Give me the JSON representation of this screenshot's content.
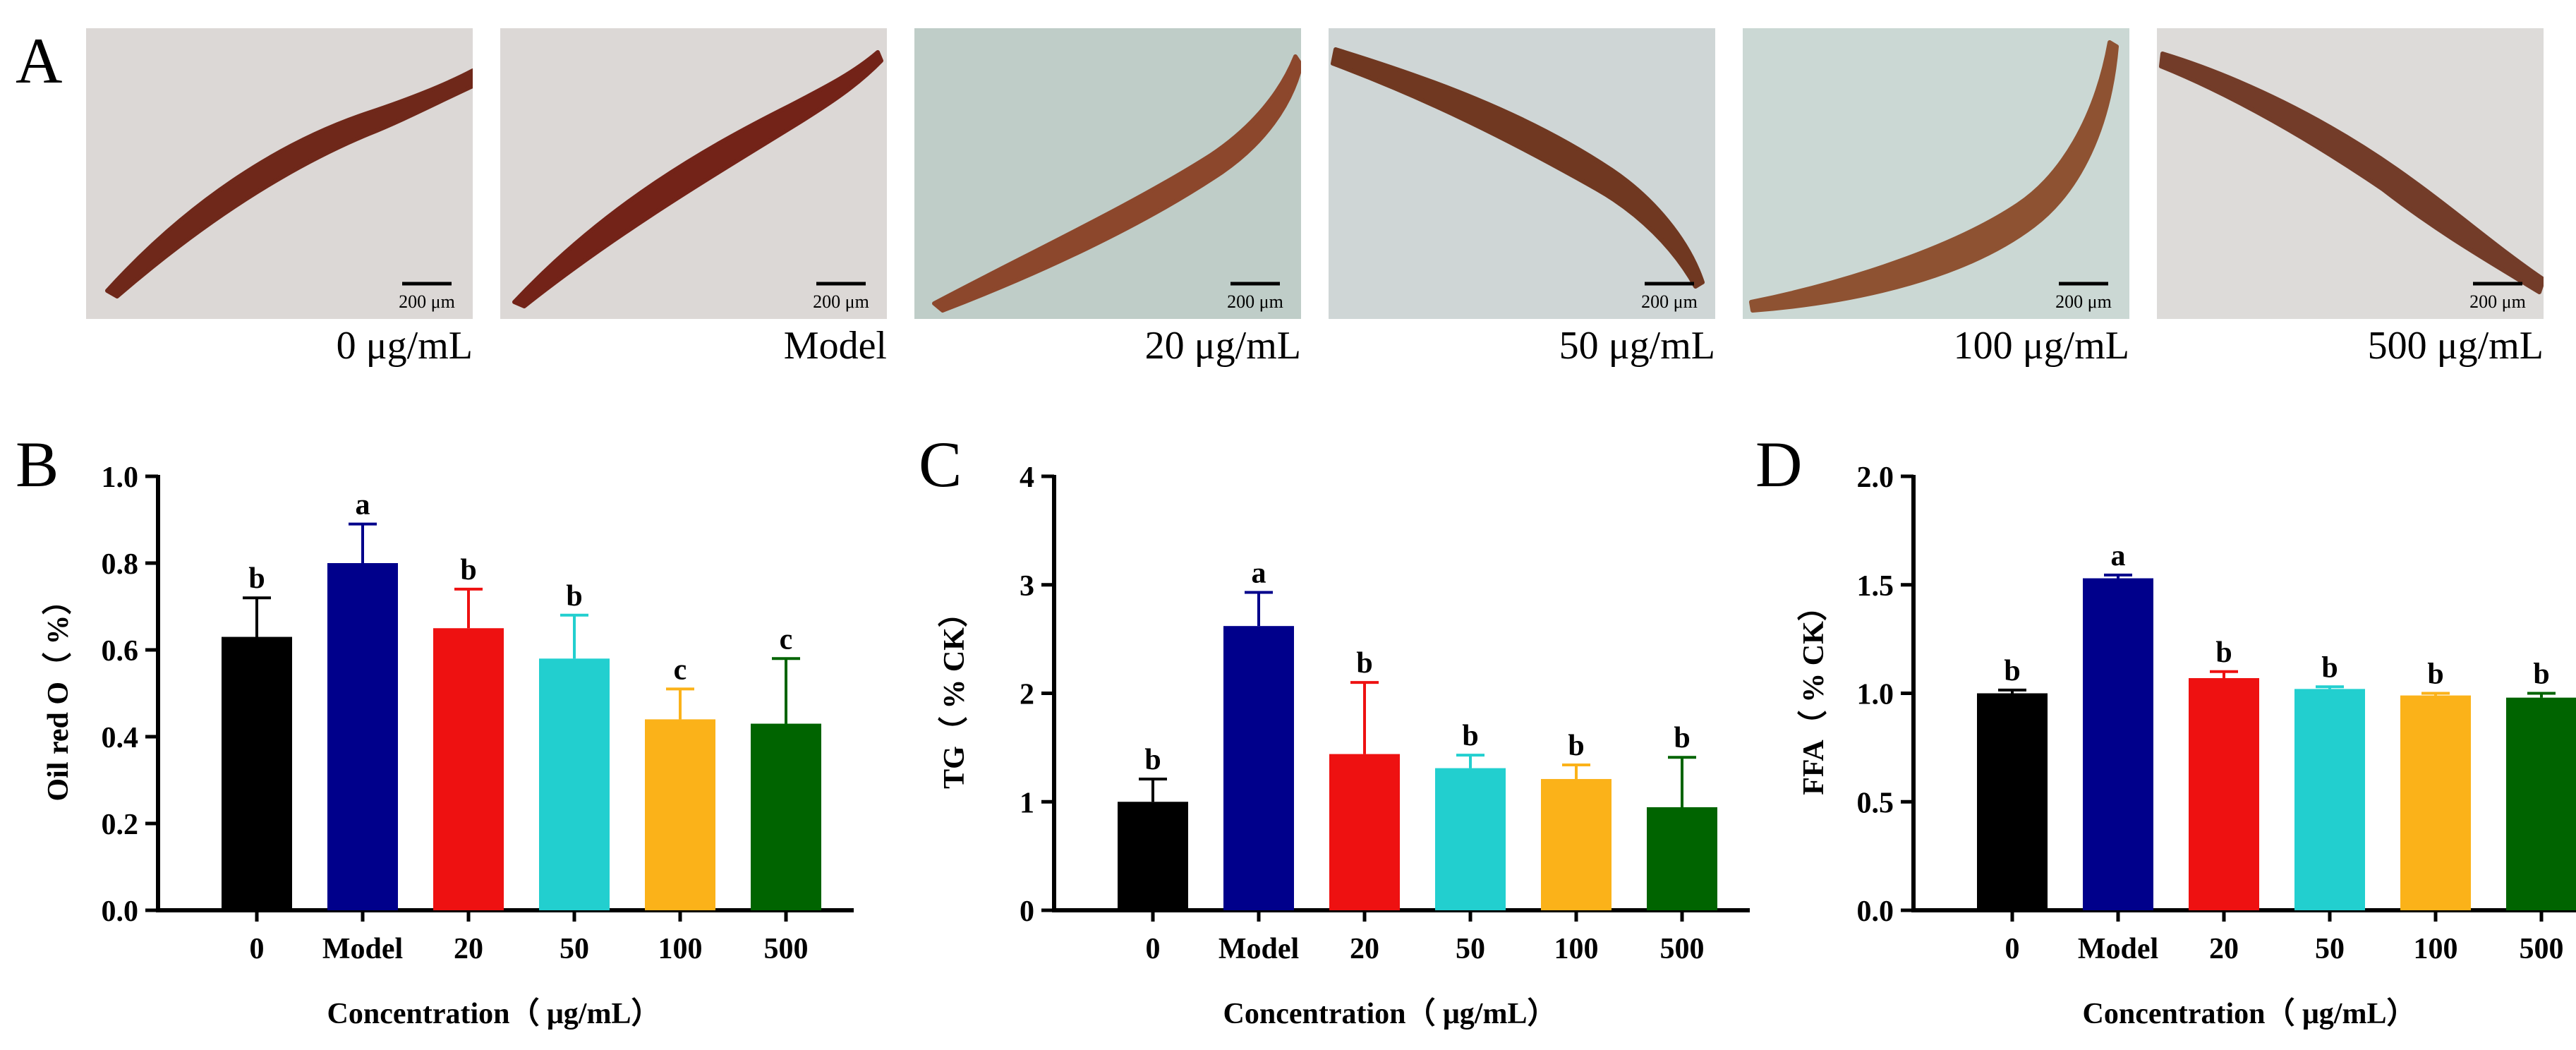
{
  "panels": {
    "A": "A",
    "B": "B",
    "C": "C",
    "D": "D"
  },
  "photos": [
    {
      "caption": "0 μg/mL",
      "scale_bar": "200 μm",
      "background": "#dcd8d6",
      "worm": "#6a1f10"
    },
    {
      "caption": "Model",
      "scale_bar": "200 μm",
      "background": "#dcd8d6",
      "worm": "#6e1a0e"
    },
    {
      "caption": "20 μg/mL",
      "scale_bar": "200 μm",
      "background": "#bfcdc8",
      "worm": "#8a4024"
    },
    {
      "caption": "50 μg/mL",
      "scale_bar": "200 μm",
      "background": "#cfd6d6",
      "worm": "#6b3018"
    },
    {
      "caption": "100 μg/mL",
      "scale_bar": "200 μm",
      "background": "#cbd8d4",
      "worm": "#8b4b2a"
    },
    {
      "caption": "500 μg/mL",
      "scale_bar": "200 μm",
      "background": "#dddbd9",
      "worm": "#6e3420"
    }
  ],
  "chart_data": [
    {
      "type": "bar",
      "title": "",
      "panel": "B",
      "xlabel": "Concentration（ μg/mL）",
      "ylabel": "Oil red O（ %）",
      "categories": [
        "0",
        "Model",
        "20",
        "50",
        "100",
        "500"
      ],
      "values": [
        0.63,
        0.8,
        0.65,
        0.58,
        0.44,
        0.43
      ],
      "errors": [
        0.09,
        0.09,
        0.09,
        0.1,
        0.07,
        0.15
      ],
      "significance": [
        "b",
        "a",
        "b",
        "b",
        "c",
        "c"
      ],
      "ylim": [
        0,
        1.0
      ],
      "yticks": [
        0.0,
        0.2,
        0.4,
        0.6,
        0.8,
        1.0
      ],
      "ytick_labels": [
        "0.0",
        "0.2",
        "0.4",
        "0.6",
        "0.8",
        "1.0"
      ],
      "colors": [
        "#000000",
        "#00008b",
        "#ee1111",
        "#22cfcf",
        "#fbb219",
        "#006400"
      ]
    },
    {
      "type": "bar",
      "title": "",
      "panel": "C",
      "xlabel": "Concentration（ μg/mL）",
      "ylabel": "TG（ % CK）",
      "categories": [
        "0",
        "Model",
        "20",
        "50",
        "100",
        "500"
      ],
      "values": [
        1.0,
        2.62,
        1.44,
        1.31,
        1.21,
        0.95
      ],
      "errors": [
        0.21,
        0.31,
        0.66,
        0.12,
        0.13,
        0.46
      ],
      "significance": [
        "b",
        "a",
        "b",
        "b",
        "b",
        "b"
      ],
      "ylim": [
        0,
        4
      ],
      "yticks": [
        0,
        1,
        2,
        3,
        4
      ],
      "ytick_labels": [
        "0",
        "1",
        "2",
        "3",
        "4"
      ],
      "colors": [
        "#000000",
        "#00008b",
        "#ee1111",
        "#22cfcf",
        "#fbb219",
        "#006400"
      ]
    },
    {
      "type": "bar",
      "title": "",
      "panel": "D",
      "xlabel": "Concentration（ μg/mL）",
      "ylabel": "FFA（ % CK）",
      "categories": [
        "0",
        "Model",
        "20",
        "50",
        "100",
        "500"
      ],
      "values": [
        1.0,
        1.53,
        1.07,
        1.02,
        0.99,
        0.98
      ],
      "errors": [
        0.015,
        0.015,
        0.03,
        0.01,
        0.01,
        0.02
      ],
      "significance": [
        "b",
        "a",
        "b",
        "b",
        "b",
        "b"
      ],
      "ylim": [
        0,
        2.0
      ],
      "yticks": [
        0.0,
        0.5,
        1.0,
        1.5,
        2.0
      ],
      "ytick_labels": [
        "0.0",
        "0.5",
        "1.0",
        "1.5",
        "2.0"
      ],
      "colors": [
        "#000000",
        "#00008b",
        "#ee1111",
        "#22cfcf",
        "#fbb219",
        "#006400"
      ]
    }
  ]
}
